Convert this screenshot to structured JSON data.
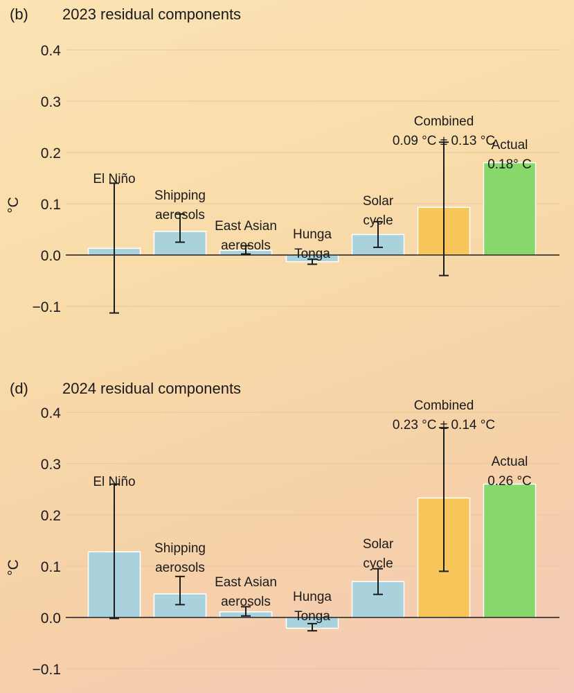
{
  "colors": {
    "component": "#a9d2dd",
    "combined": "#f7c55a",
    "actual": "#86d86a"
  },
  "chart_data": [
    {
      "type": "bar",
      "panel": "(b)",
      "title": "2023 residual components",
      "ylabel": "°C",
      "ylim": [
        -0.15,
        0.42
      ],
      "yticks": [
        "0.4",
        "0.3",
        "0.2",
        "0.1",
        "0.0",
        "−0.1"
      ],
      "ytick_values": [
        0.4,
        0.3,
        0.2,
        0.1,
        0.0,
        -0.1
      ],
      "categories": [
        {
          "label": [
            "El Niño"
          ],
          "value": 0.013,
          "err_low": -0.113,
          "err_high": 0.14,
          "kind": "component"
        },
        {
          "label": [
            "Shipping",
            "aerosols"
          ],
          "value": 0.046,
          "err_low": 0.025,
          "err_high": 0.08,
          "kind": "component"
        },
        {
          "label": [
            "East Asian",
            "aerosols"
          ],
          "value": 0.009,
          "err_low": 0.002,
          "err_high": 0.018,
          "kind": "component"
        },
        {
          "label": [
            "Hunga",
            "Tonga"
          ],
          "value": -0.013,
          "err_low": -0.018,
          "err_high": -0.008,
          "kind": "component"
        },
        {
          "label": [
            "Solar",
            "cycle"
          ],
          "value": 0.04,
          "err_low": 0.015,
          "err_high": 0.065,
          "kind": "component"
        },
        {
          "label": [
            "Combined",
            "0.09 °C ± 0.13 °C"
          ],
          "value": 0.093,
          "err_low": -0.04,
          "err_high": 0.22,
          "kind": "combined"
        },
        {
          "label": [
            "Actual",
            "0.18° C"
          ],
          "value": 0.18,
          "kind": "actual"
        }
      ]
    },
    {
      "type": "bar",
      "panel": "(d)",
      "title": "2024 residual components",
      "ylabel": "°C",
      "ylim": [
        -0.15,
        0.42
      ],
      "yticks": [
        "0.4",
        "0.3",
        "0.2",
        "0.1",
        "0.0",
        "−0.1"
      ],
      "ytick_values": [
        0.4,
        0.3,
        0.2,
        0.1,
        0.0,
        -0.1
      ],
      "categories": [
        {
          "label": [
            "El Niño"
          ],
          "value": 0.128,
          "err_low": -0.002,
          "err_high": 0.26,
          "kind": "component"
        },
        {
          "label": [
            "Shipping",
            "aerosols"
          ],
          "value": 0.046,
          "err_low": 0.025,
          "err_high": 0.08,
          "kind": "component"
        },
        {
          "label": [
            "East Asian",
            "aerosols"
          ],
          "value": 0.011,
          "err_low": 0.003,
          "err_high": 0.021,
          "kind": "component"
        },
        {
          "label": [
            "Hunga",
            "Tonga"
          ],
          "value": -0.021,
          "err_low": -0.026,
          "err_high": -0.012,
          "kind": "component"
        },
        {
          "label": [
            "Solar",
            "cycle"
          ],
          "value": 0.07,
          "err_low": 0.045,
          "err_high": 0.095,
          "kind": "component"
        },
        {
          "label": [
            "Combined",
            "0.23 °C ± 0.14 °C"
          ],
          "value": 0.233,
          "err_low": 0.09,
          "err_high": 0.37,
          "kind": "combined"
        },
        {
          "label": [
            "Actual",
            "0.26 °C"
          ],
          "value": 0.26,
          "kind": "actual"
        }
      ]
    }
  ]
}
